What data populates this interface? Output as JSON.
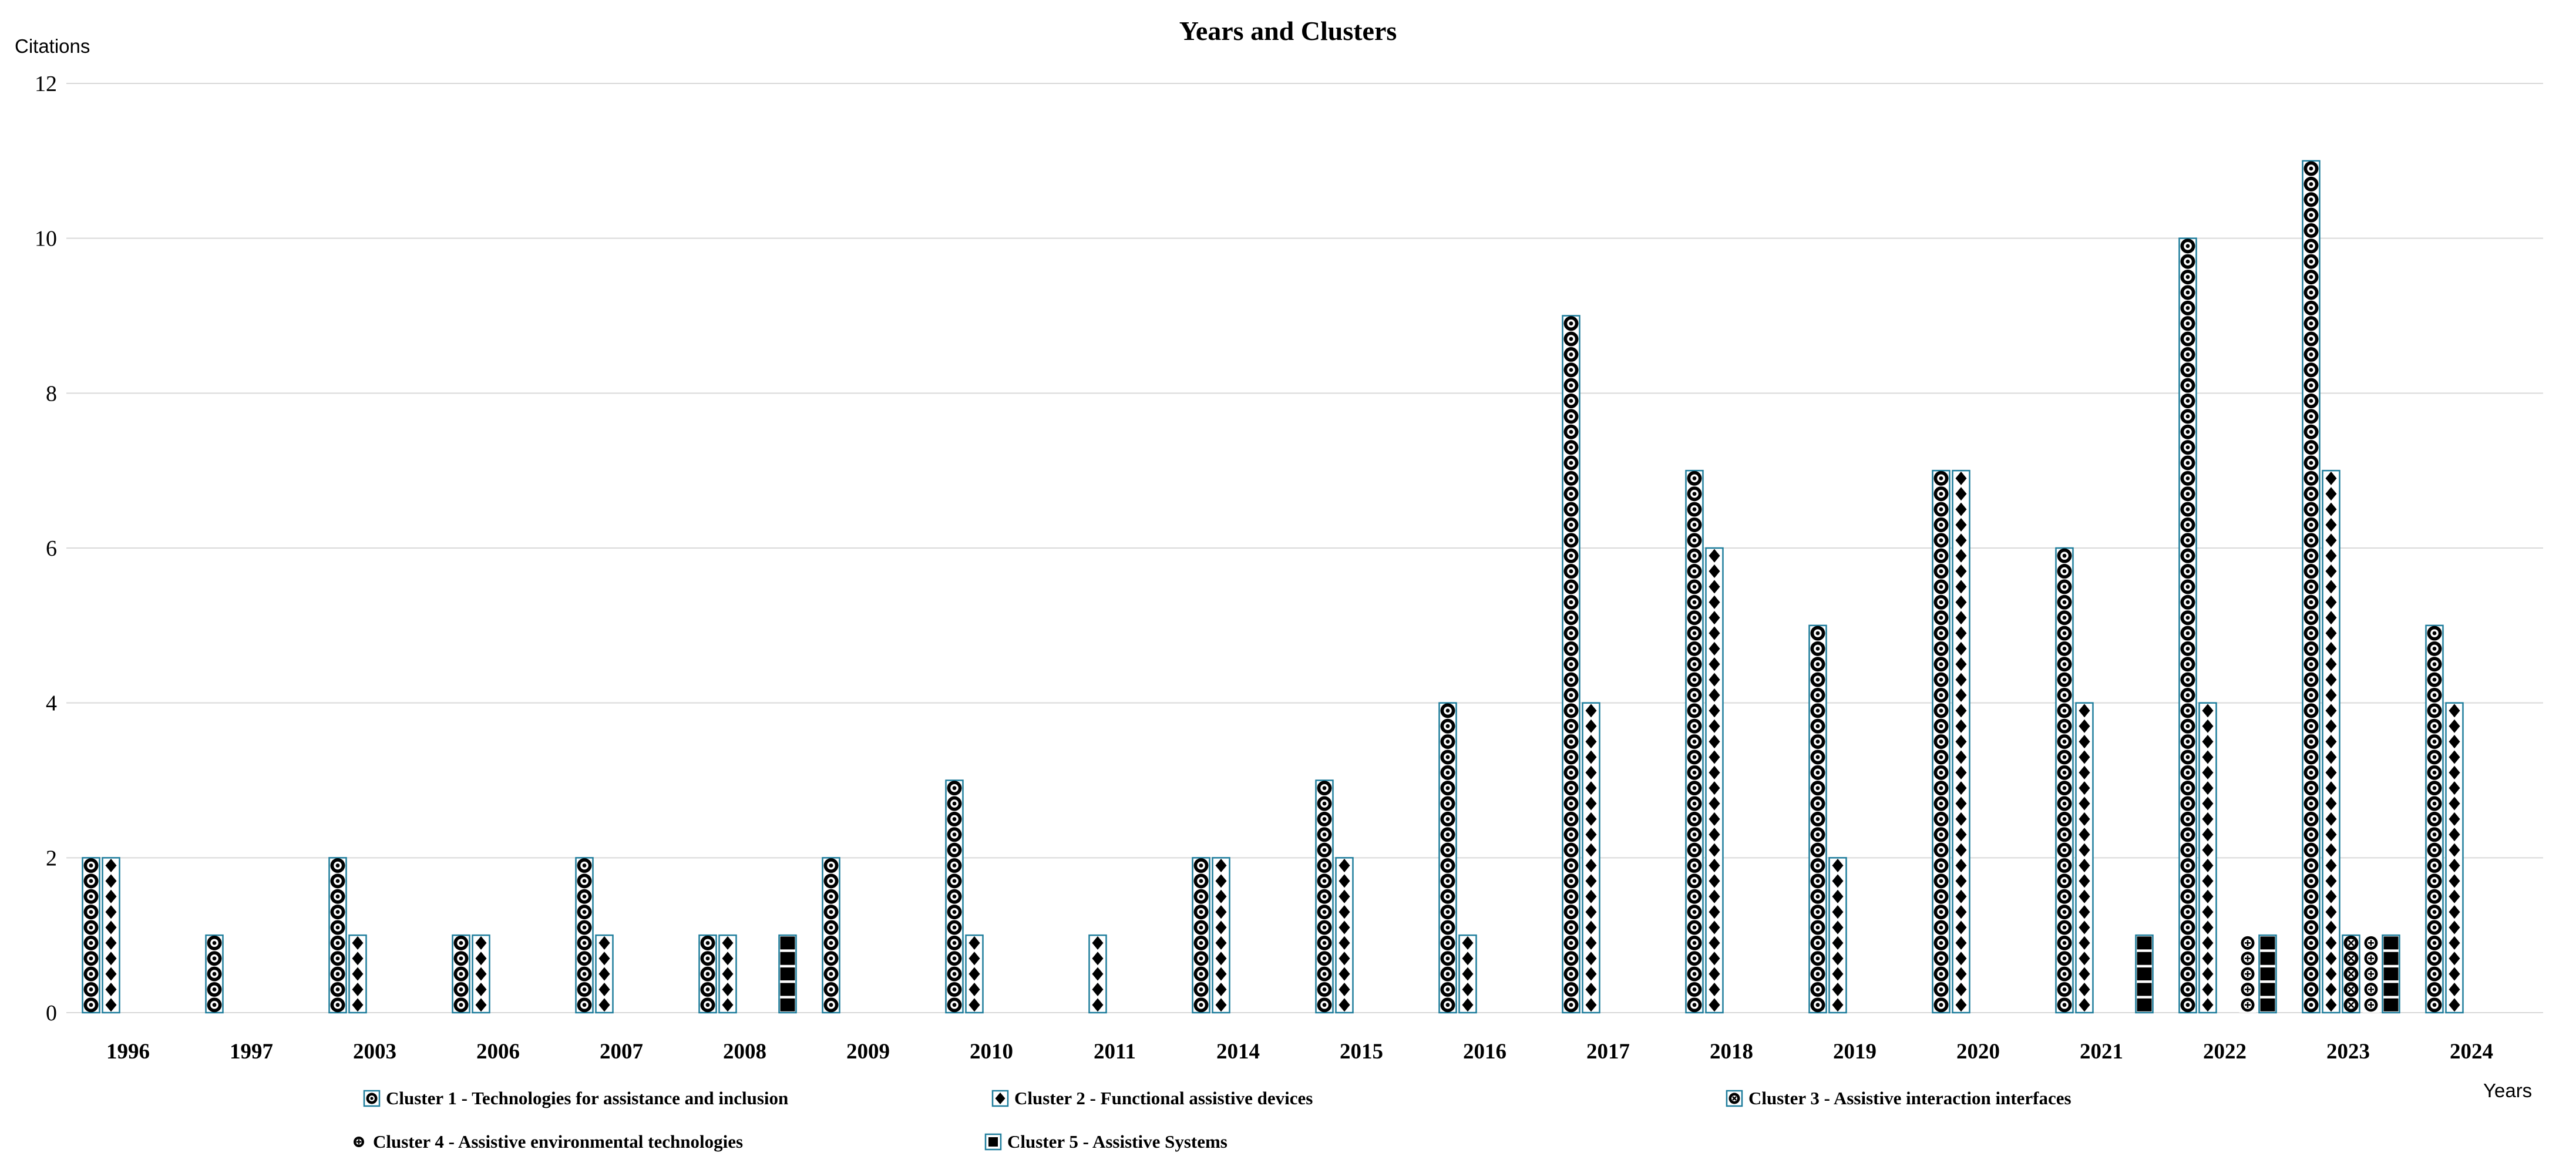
{
  "title": "Years and Clusters",
  "y_axis": {
    "label": "Citations",
    "ticks": [
      0,
      2,
      4,
      6,
      8,
      10,
      12
    ],
    "max": 12
  },
  "x_axis": {
    "label": "Years"
  },
  "colors": {
    "bar_outline_teal": "#1e7d9c",
    "gridline": "#d9d9d9",
    "pattern_black": "#000000",
    "background": "#ffffff"
  },
  "legend": [
    {
      "label": "Cluster 1 - Technologies for assistance and inclusion",
      "marker": "circle-dot"
    },
    {
      "label": "Cluster 2 - Functional assistive devices",
      "marker": "diamond"
    },
    {
      "label": "Cluster 3 - Assistive interaction interfaces",
      "marker": "circle-x"
    },
    {
      "label": "Cluster 4 - Assistive environmental technologies",
      "marker": "circle-plus"
    },
    {
      "label": "Cluster 5 - Assistive Systems",
      "marker": "filled-square"
    }
  ],
  "chart_data": {
    "type": "bar",
    "title": "Years and Clusters",
    "xlabel": "Years",
    "ylabel": "Citations",
    "ylim": [
      0,
      12
    ],
    "grid": true,
    "legend_position": "bottom",
    "categories": [
      "1996",
      "1997",
      "2003",
      "2006",
      "2007",
      "2008",
      "2009",
      "2010",
      "2011",
      "2014",
      "2015",
      "2016",
      "2017",
      "2018",
      "2019",
      "2020",
      "2021",
      "2022",
      "2023",
      "2024"
    ],
    "series": [
      {
        "name": "Cluster 1 - Technologies for assistance and inclusion",
        "pattern": "circle-dot",
        "outlined": true,
        "values": [
          2,
          1,
          2,
          1,
          2,
          1,
          2,
          3,
          0,
          2,
          3,
          4,
          9,
          7,
          5,
          7,
          6,
          10,
          11,
          5
        ]
      },
      {
        "name": "Cluster 2 - Functional assistive devices",
        "pattern": "diamond",
        "outlined": true,
        "values": [
          2,
          0,
          1,
          1,
          1,
          1,
          0,
          1,
          1,
          2,
          2,
          1,
          4,
          6,
          2,
          7,
          4,
          4,
          7,
          4
        ]
      },
      {
        "name": "Cluster 3 - Assistive interaction interfaces",
        "pattern": "circle-x",
        "outlined": true,
        "values": [
          0,
          0,
          0,
          0,
          0,
          0,
          0,
          0,
          0,
          0,
          0,
          0,
          0,
          0,
          0,
          0,
          0,
          0,
          1,
          0
        ]
      },
      {
        "name": "Cluster 4 - Assistive environmental technologies",
        "pattern": "circle-plus",
        "outlined": false,
        "values": [
          0,
          0,
          0,
          0,
          0,
          0,
          0,
          0,
          0,
          0,
          0,
          0,
          0,
          0,
          0,
          0,
          0,
          1,
          1,
          0
        ]
      },
      {
        "name": "Cluster 5 - Assistive Systems",
        "pattern": "filled-square",
        "outlined": true,
        "values": [
          0,
          0,
          0,
          0,
          0,
          1,
          0,
          0,
          0,
          0,
          0,
          0,
          0,
          0,
          0,
          0,
          1,
          1,
          1,
          0
        ]
      }
    ]
  }
}
